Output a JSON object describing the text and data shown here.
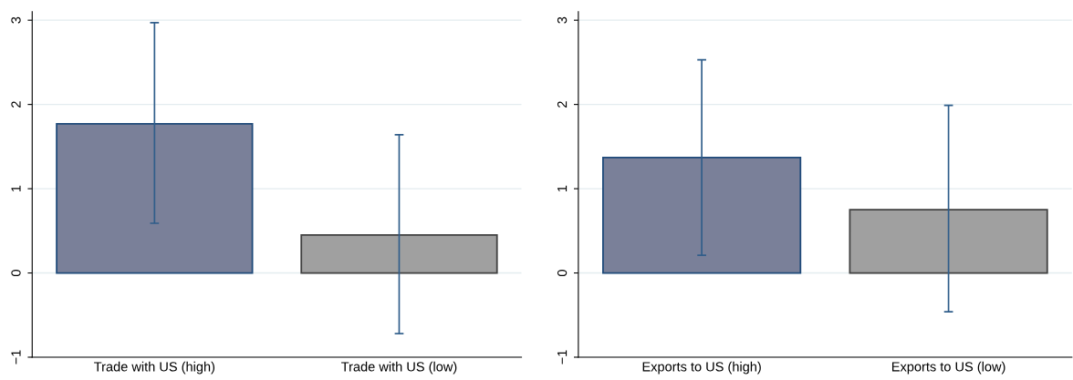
{
  "chart_data": [
    {
      "type": "bar",
      "categories": [
        "Trade with US (high)",
        "Trade with US (low)"
      ],
      "values": [
        1.77,
        0.45
      ],
      "colors": [
        "#7a8099",
        "#a0a0a0"
      ],
      "errors": [
        [
          0.59,
          2.97
        ],
        [
          -0.72,
          1.64
        ]
      ],
      "ylim": [
        -1,
        3.1
      ],
      "yticks": [
        {
          "value": -1,
          "label": "−1"
        },
        0,
        1,
        2,
        3
      ],
      "grid": "y",
      "legend": false
    },
    {
      "type": "bar",
      "categories": [
        "Exports to US (high)",
        "Exports to US (low)"
      ],
      "values": [
        1.37,
        0.75
      ],
      "colors": [
        "#7a8099",
        "#a0a0a0"
      ],
      "errors": [
        [
          0.21,
          2.53
        ],
        [
          -0.46,
          1.99
        ]
      ],
      "ylim": [
        -1,
        3.1
      ],
      "yticks": [
        {
          "value": -1,
          "label": "−1"
        },
        0,
        1,
        2,
        3
      ],
      "grid": "y",
      "legend": false
    }
  ]
}
